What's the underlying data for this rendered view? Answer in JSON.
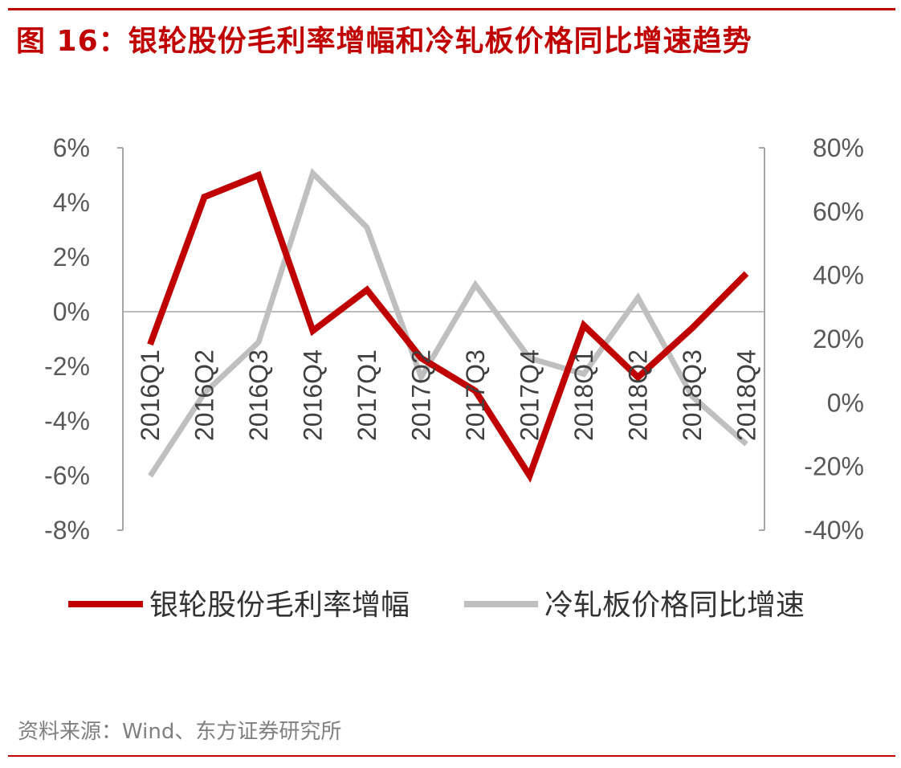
{
  "title": "图 16：银轮股份毛利率增幅和冷轧板价格同比增速趋势",
  "source": "资料来源：Wind、东方证券研究所",
  "colors": {
    "accent": "#c00000",
    "series1": "#c00000",
    "series2": "#bfbfbf",
    "axis": "#a6a6a6"
  },
  "chart_data": {
    "type": "line",
    "categories": [
      "2016Q1",
      "2016Q2",
      "2016Q3",
      "2016Q4",
      "2017Q1",
      "2017Q2",
      "2017Q3",
      "2017Q4",
      "2018Q1",
      "2018Q2",
      "2018Q3",
      "2018Q4"
    ],
    "series": [
      {
        "name": "银轮股份毛利率增幅",
        "axis": "left",
        "values": [
          -1.2,
          4.2,
          5.0,
          -0.7,
          0.8,
          -1.7,
          -2.9,
          -6.0,
          -0.5,
          -2.4,
          -0.6,
          1.4
        ]
      },
      {
        "name": "冷轧板价格同比增速",
        "axis": "right",
        "values": [
          -23,
          3,
          19,
          72,
          55,
          8,
          37,
          14,
          9,
          33,
          2,
          -13
        ]
      }
    ],
    "y_left": {
      "ticks": [
        "6%",
        "4%",
        "2%",
        "0%",
        "-2%",
        "-4%",
        "-6%",
        "-8%"
      ],
      "ylim": [
        -8,
        6
      ]
    },
    "y_right": {
      "ticks": [
        "80%",
        "60%",
        "40%",
        "20%",
        "0%",
        "-20%",
        "-40%"
      ],
      "ylim": [
        -40,
        80
      ]
    },
    "legend": "bottom",
    "grid": false
  }
}
